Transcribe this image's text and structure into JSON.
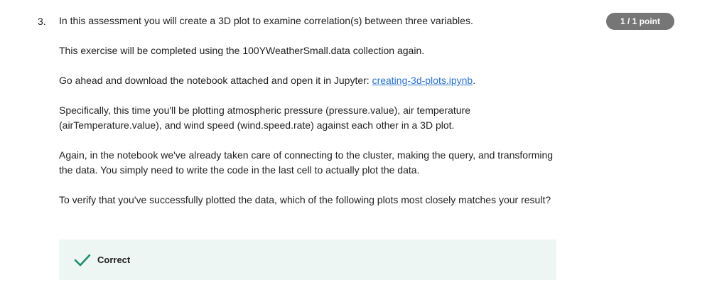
{
  "question": {
    "number": "3.",
    "score": "1 / 1 point",
    "paragraphs": {
      "p1": "In this assessment you will create a 3D plot to examine correlation(s) between three variables.",
      "p2": "This exercise will be completed using the 100YWeatherSmall.data collection again.",
      "p3_prefix": "Go ahead and download the notebook attached and open it in Jupyter: ",
      "p3_link": "creating-3d-plots.ipynb",
      "p3_suffix": ".",
      "p4": "Specifically, this time you'll be plotting atmospheric pressure (pressure.value), air temperature (airTemperature.value), and wind speed (wind.speed.rate) against each other in a 3D plot.",
      "p5": "Again, in the notebook we've already taken care of connecting to the cluster, making the query, and transforming the data. You simply need to write the code in the last cell to actually plot the data.",
      "p6": "To verify that you've successfully plotted the data, which of the following plots most closely matches your result?"
    },
    "feedback": {
      "label": "Correct",
      "icon": "checkmark-icon"
    }
  },
  "colors": {
    "link": "#2a73cc",
    "badge_bg": "#767676",
    "feedback_bg": "#eef6f3",
    "check": "#1e8c6e"
  }
}
